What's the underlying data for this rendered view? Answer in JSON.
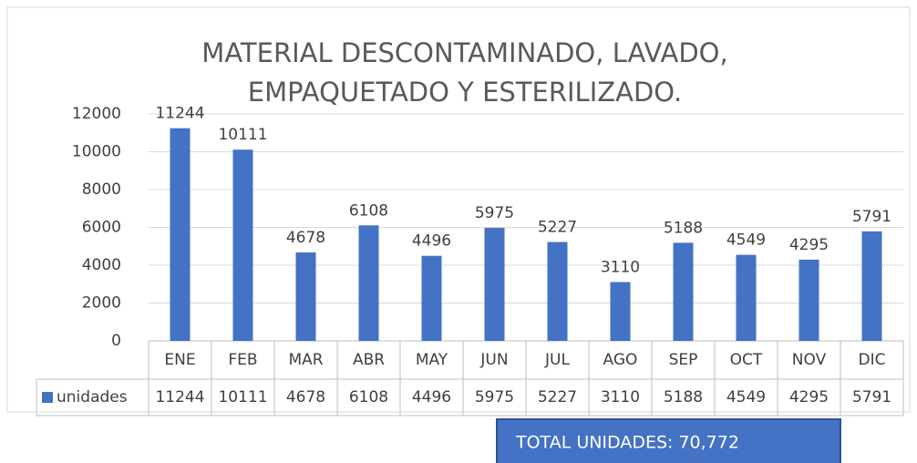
{
  "chart_data": {
    "type": "bar",
    "title": [
      "MATERIAL DESCONTAMINADO, LAVADO,",
      "EMPAQUETADO Y ESTERILIZADO."
    ],
    "categories": [
      "ENE",
      "FEB",
      "MAR",
      "ABR",
      "MAY",
      "JUN",
      "JUL",
      "AGO",
      "SEP",
      "OCT",
      "NOV",
      "DIC"
    ],
    "series": [
      {
        "name": "unidades",
        "color": "#4472c4",
        "values": [
          11244,
          10111,
          4678,
          6108,
          4496,
          5975,
          5227,
          3110,
          5188,
          4549,
          4295,
          5791
        ]
      }
    ],
    "ylim": [
      0,
      12000
    ],
    "yticks": [
      0,
      2000,
      4000,
      6000,
      8000,
      10000,
      12000
    ],
    "grid": true,
    "data_table": true,
    "annotation": "TOTAL UNIDADES: 70,772"
  }
}
